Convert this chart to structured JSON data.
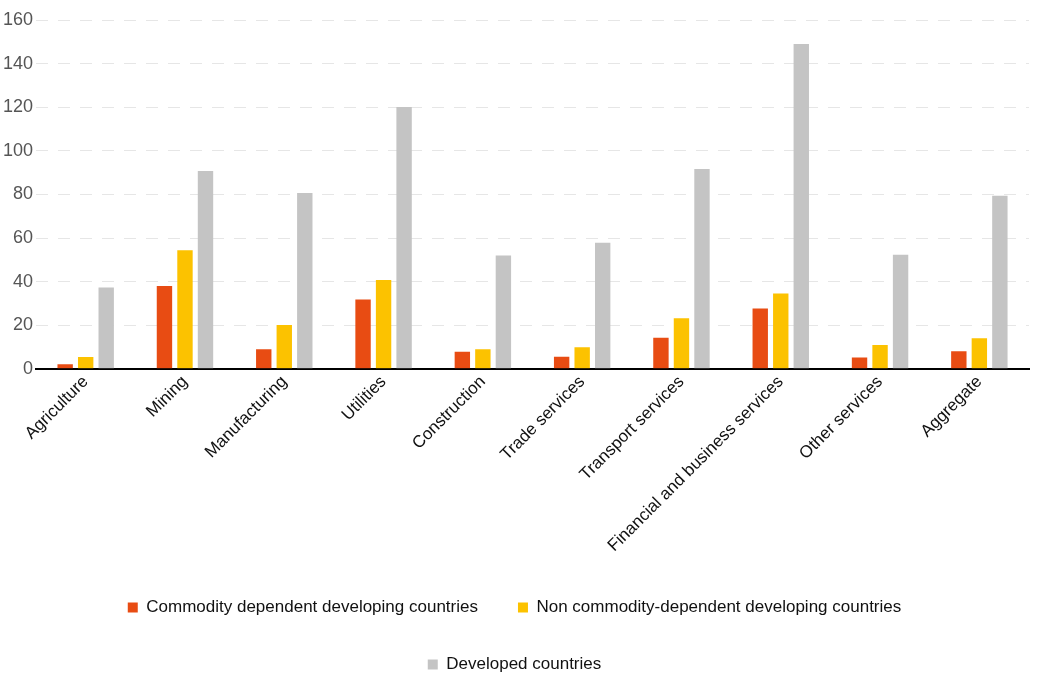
{
  "chart_data": {
    "type": "bar",
    "categories": [
      "Agriculture",
      "Mining",
      "Manufacturing",
      "Utilities",
      "Construction",
      "Trade services",
      "Transport services",
      "Financial and business services",
      "Other services",
      "Aggregate"
    ],
    "series": [
      {
        "name": "Commodity dependent developing countries",
        "color": "#e84c13",
        "values": [
          2.1,
          38,
          9,
          31.8,
          7.8,
          5.5,
          14.3,
          27.7,
          5.2,
          8.1
        ]
      },
      {
        "name": "Non commodity-dependent developing countries",
        "color": "#fcc200",
        "values": [
          5.4,
          54.4,
          20.1,
          40.8,
          9,
          9.9,
          23.2,
          34.6,
          11,
          14
        ]
      },
      {
        "name": "Developed countries",
        "color": "#c4c4c4",
        "values": [
          37.3,
          90.7,
          80.7,
          120.1,
          52,
          57.8,
          91.7,
          149,
          52.3,
          79.4
        ]
      }
    ],
    "ylim": [
      0,
      160
    ],
    "yticks": [
      0,
      20,
      40,
      60,
      80,
      100,
      120,
      140,
      160
    ],
    "grid": "y",
    "legend": "bottom"
  }
}
